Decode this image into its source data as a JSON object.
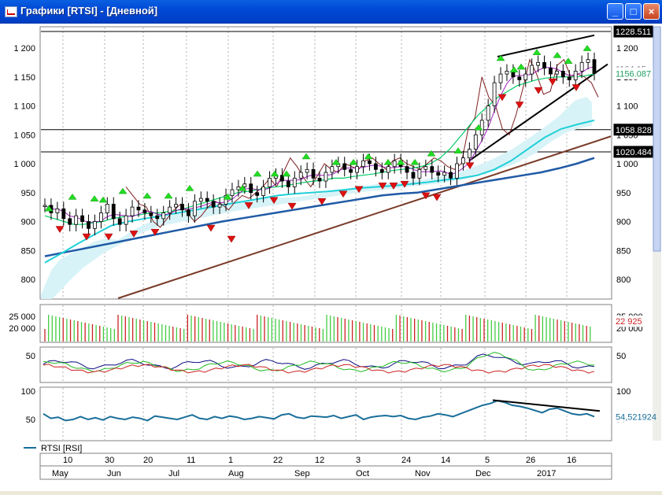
{
  "window": {
    "title": "Графики [RTSI] - [Дневной]",
    "buttons": {
      "minimize": "_",
      "maximize": "□",
      "close": "×"
    }
  },
  "price_panel": {
    "y_ticks": [
      "1 200",
      "1 150",
      "1 100",
      "1 050",
      "1 000",
      "950",
      "900",
      "850",
      "800"
    ],
    "y_tick_values": [
      1200,
      1150,
      1100,
      1050,
      1000,
      950,
      900,
      850,
      800
    ],
    "price_labels": [
      {
        "text": "1228.511",
        "value": 1228.511,
        "style": "black"
      },
      {
        "text": "1164.15",
        "value": 1164.15,
        "style": "plain"
      },
      {
        "text": "1156.087",
        "value": 1156.087,
        "style": "green"
      },
      {
        "text": "1058.828",
        "value": 1058.828,
        "style": "black"
      },
      {
        "text": "1020.484",
        "value": 1020.484,
        "style": "black"
      }
    ],
    "horizontal_levels": [
      1228.511,
      1058.828,
      1020.484
    ]
  },
  "volume_panel": {
    "left_ticks": [
      "25 000",
      "20 000"
    ],
    "right_ticks": [
      "25 000",
      "20 000"
    ],
    "tick_values": [
      25000,
      20000
    ],
    "current_label": "22 925"
  },
  "oscillator_panel": {
    "left_ticks": [
      "50"
    ],
    "right_ticks": [
      "50"
    ],
    "tick_values": [
      50
    ]
  },
  "rsi_panel": {
    "left_ticks": [
      "100",
      "50"
    ],
    "right_ticks": [
      "100",
      "50"
    ],
    "tick_values": [
      100,
      50
    ],
    "current_value_label": "54,521924",
    "legend_label": "RTSI [RSI]",
    "colors": {
      "rsi": "#1a6f9a"
    }
  },
  "time_axis": {
    "day_labels": [
      "10",
      "30",
      "20",
      "11",
      "1",
      "22",
      "12",
      "3",
      "24",
      "14",
      "5",
      "26",
      "16"
    ],
    "month_labels": [
      "May",
      "Jun",
      "Jul",
      "Aug",
      "Sep",
      "Oct",
      "Nov",
      "Dec",
      "2017"
    ]
  },
  "chart_data": {
    "type": "line",
    "title": "",
    "series_colors": {
      "candles_up": "#000000",
      "ma_fast": "#00cc66",
      "ma_mid": "#a020c0",
      "ma_slow_cyan": "#20d0d8",
      "ma_long_blue": "#1f5aa6",
      "cloud_span": "#7f1f1f",
      "trend_line": "#7a3a28",
      "up_signal": "#22dd22",
      "down_signal": "#dd1111"
    },
    "price_close": [
      928,
      915,
      922,
      905,
      895,
      910,
      900,
      888,
      900,
      915,
      930,
      905,
      895,
      910,
      925,
      920,
      915,
      910,
      905,
      915,
      925,
      930,
      920,
      910,
      935,
      940,
      935,
      925,
      930,
      945,
      955,
      960,
      965,
      950,
      945,
      960,
      975,
      980,
      970,
      960,
      975,
      985,
      990,
      975,
      970,
      985,
      995,
      1000,
      990,
      985,
      995,
      1005,
      1000,
      990,
      985,
      995,
      1005,
      995,
      985,
      975,
      990,
      995,
      985,
      980,
      985,
      975,
      1000,
      1010,
      1025,
      1050,
      1075,
      1100,
      1140,
      1155,
      1160,
      1150,
      1145,
      1155,
      1170,
      1175,
      1165,
      1155,
      1160,
      1150,
      1145,
      1160,
      1175,
      1180,
      1156
    ],
    "price_cloud_span": [
      960,
      945,
      930,
      925,
      900,
      890,
      905,
      920,
      930,
      915,
      900,
      910,
      925,
      935,
      930,
      920,
      935,
      945,
      940,
      950,
      960,
      975,
      960,
      985,
      1010,
      995,
      975,
      960,
      980,
      1000,
      990,
      985,
      1000,
      995,
      990,
      1005,
      1010,
      1000,
      990,
      1005,
      1010,
      1000,
      995,
      990,
      1000,
      1010,
      1005,
      995,
      990,
      1000,
      1060,
      1080,
      1150,
      1115,
      1100,
      1060,
      1050,
      1085,
      1130,
      1180,
      1155,
      1120,
      1125,
      1170,
      1180,
      1150,
      1155,
      1150,
      1140,
      1115
    ],
    "ma_fast": [
      910,
      905,
      900,
      895,
      895,
      898,
      900,
      905,
      908,
      910,
      912,
      915,
      915,
      918,
      920,
      925,
      930,
      935,
      940,
      945,
      950,
      952,
      955,
      958,
      960,
      962,
      965,
      968,
      970,
      972,
      975,
      975,
      978,
      980,
      982,
      985,
      988,
      990,
      992,
      995,
      1000,
      1010,
      1025,
      1045,
      1065,
      1085,
      1100,
      1115,
      1125,
      1135,
      1140,
      1145,
      1148,
      1150,
      1150,
      1150,
      1152,
      1155
    ],
    "ma_long_blue": [
      840,
      846,
      852,
      858,
      864,
      870,
      876,
      882,
      888,
      894,
      900,
      905,
      910,
      915,
      920,
      925,
      930,
      935,
      940,
      945,
      948,
      950,
      955,
      960,
      965,
      970,
      975,
      980,
      985,
      992,
      1000,
      1010
    ],
    "rsi": [
      60,
      52,
      54,
      48,
      50,
      55,
      50,
      53,
      49,
      55,
      52,
      50,
      54,
      52,
      48,
      56,
      54,
      52,
      50,
      54,
      58,
      52,
      50,
      55,
      52,
      56,
      54,
      50,
      52,
      55,
      53,
      51,
      58,
      60,
      54,
      52,
      56,
      55,
      54,
      57,
      52,
      55,
      58,
      50,
      54,
      56,
      57,
      55,
      57,
      52,
      50,
      54,
      56,
      60,
      58,
      55,
      60,
      65,
      70,
      75,
      78,
      83,
      80,
      75,
      73,
      70,
      66,
      62,
      68,
      70,
      65,
      60,
      58,
      60,
      55
    ],
    "rsi_trend_line": {
      "start": 84,
      "end": 65
    },
    "volume_up_last": 22925,
    "up_signals_count": 27,
    "down_signals_count": 23
  }
}
